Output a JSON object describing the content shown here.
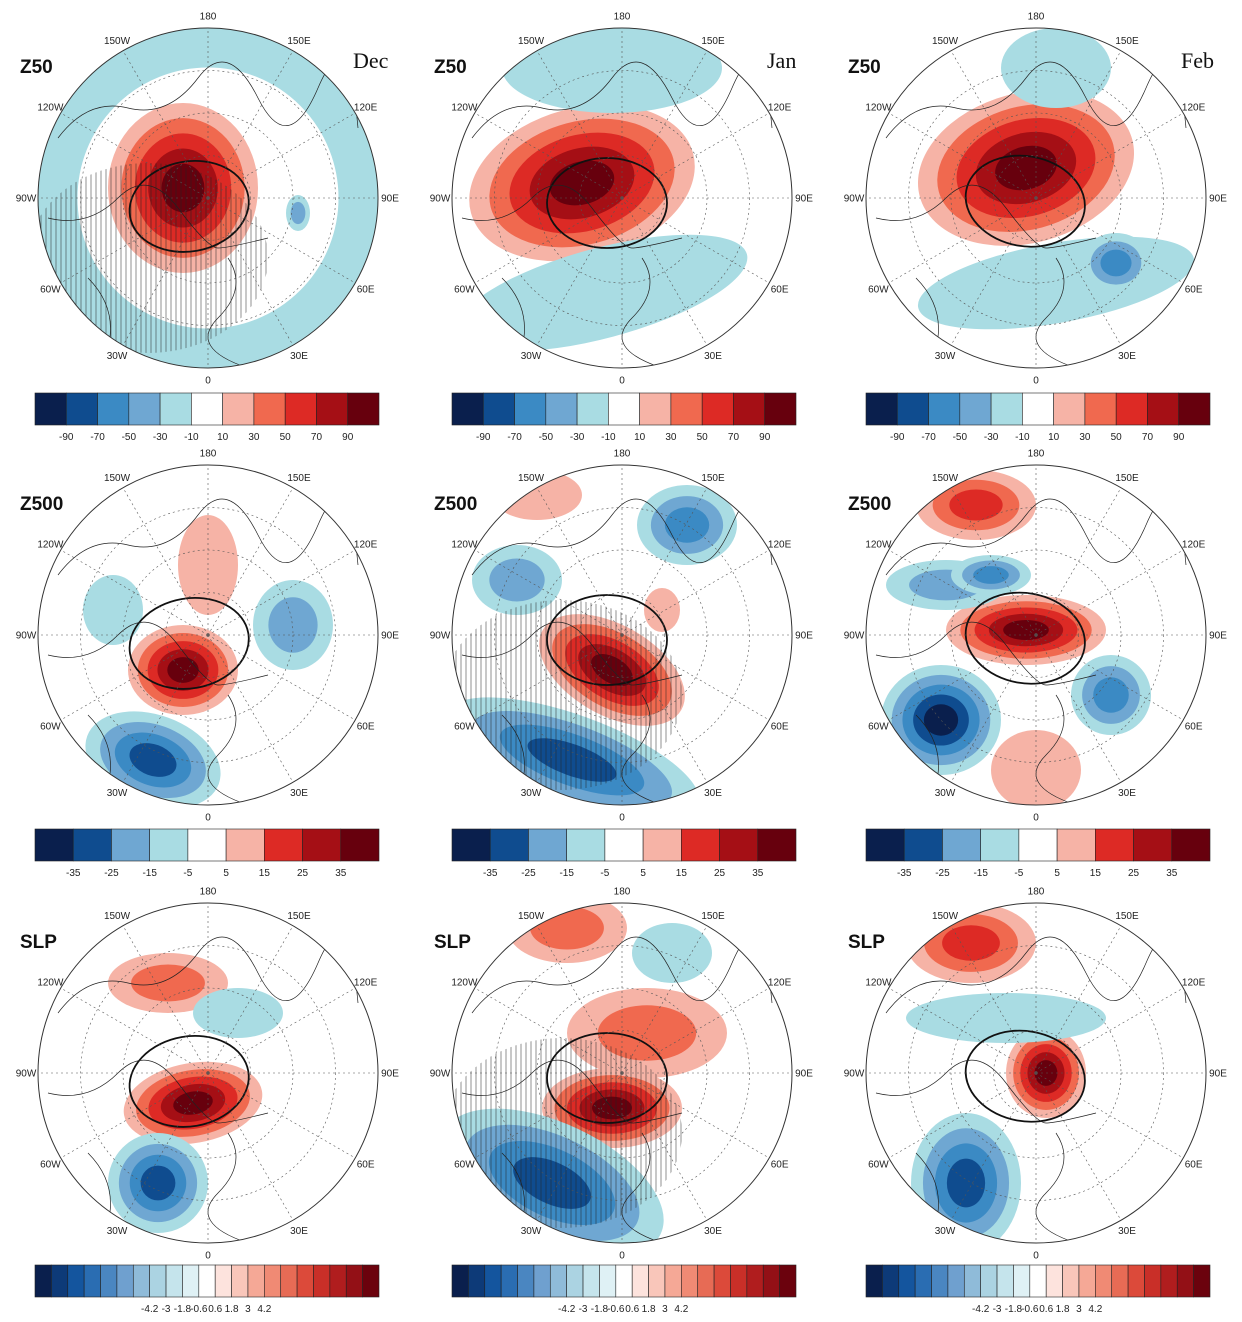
{
  "months": [
    "Dec",
    "Jan",
    "Feb"
  ],
  "rows": [
    {
      "label": "Z50",
      "colorbar": {
        "colors": [
          "#0a1f4d",
          "#0f4c8f",
          "#3b8ac4",
          "#6fa7d2",
          "#a9dce3",
          "#ffffff",
          "#f6b3a6",
          "#f0694f",
          "#dd2a25",
          "#a50f15",
          "#67000d"
        ],
        "ticks": [
          "-90",
          "-70",
          "-50",
          "-30",
          "-10",
          "10",
          "30",
          "50",
          "70",
          "90"
        ]
      },
      "panels": [
        {
          "month": "Dec",
          "hatched": true
        },
        {
          "month": "Jan",
          "hatched": false
        },
        {
          "month": "Feb",
          "hatched": false
        }
      ]
    },
    {
      "label": "Z500",
      "colorbar": {
        "colors": [
          "#0a1f4d",
          "#0f4c8f",
          "#6fa7d2",
          "#a9dce3",
          "#ffffff",
          "#f6b3a6",
          "#dd2a25",
          "#a50f15",
          "#67000d"
        ],
        "ticks": [
          "-35",
          "-25",
          "-15",
          "-5",
          "5",
          "15",
          "25",
          "35"
        ]
      },
      "panels": [
        {
          "month": "Dec",
          "hatched": false
        },
        {
          "month": "Jan",
          "hatched": true
        },
        {
          "month": "Feb",
          "hatched": false
        }
      ]
    },
    {
      "label": "SLP",
      "colorbar": {
        "colors": [
          "#0a1f4d",
          "#0d3a78",
          "#14559e",
          "#2a6db2",
          "#4a86c1",
          "#6fa0cf",
          "#8fbbd9",
          "#abd3e2",
          "#c5e4ec",
          "#dff1f5",
          "#ffffff",
          "#fde3dd",
          "#f9c6ba",
          "#f5a896",
          "#f08a74",
          "#e76b55",
          "#dc4a3a",
          "#c92f28",
          "#b01d1e",
          "#931016",
          "#6b020d"
        ],
        "ticks": [
          "-4.2",
          "-3",
          "-1.8",
          "-0.6",
          "0.6",
          "1.8",
          "3",
          "4.2"
        ]
      },
      "panels": [
        {
          "month": "Dec",
          "hatched": false
        },
        {
          "month": "Jan",
          "hatched": true
        },
        {
          "month": "Feb",
          "hatched": false
        }
      ]
    }
  ],
  "lon_labels": [
    "180",
    "150E",
    "120E",
    "90E",
    "60E",
    "30E",
    "0",
    "30W",
    "60W",
    "90W",
    "120W",
    "150W"
  ],
  "palette": {
    "warm": [
      "#f6b3a6",
      "#f0694f",
      "#dd2a25",
      "#a50f15",
      "#67000d"
    ],
    "cool": [
      "#a9dce3",
      "#6fa7d2",
      "#3b8ac4",
      "#0f4c8f",
      "#0a1f4d"
    ]
  }
}
